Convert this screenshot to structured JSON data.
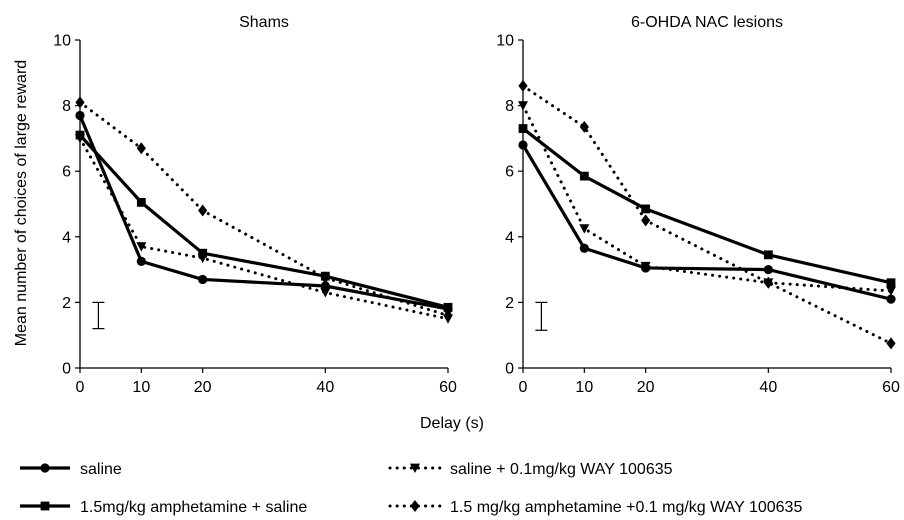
{
  "figure": {
    "ylabel": "Mean number of choices of large reward",
    "xlabel": "Delay (s)"
  },
  "legend": [
    {
      "label": "saline",
      "style": "solid",
      "marker": "circle"
    },
    {
      "label": "saline + 0.1mg/kg WAY 100635",
      "style": "dotted",
      "marker": "triangle-down"
    },
    {
      "label": "1.5mg/kg amphetamine + saline",
      "style": "solid",
      "marker": "square"
    },
    {
      "label": "1.5 mg/kg amphetamine +0.1 mg/kg WAY 100635",
      "style": "dotted",
      "marker": "diamond"
    }
  ],
  "chart_data": [
    {
      "type": "line",
      "title": "Shams",
      "x": [
        0,
        10,
        20,
        40,
        60
      ],
      "xticks": [
        "0",
        "10",
        "20",
        "40",
        "60"
      ],
      "yticks": [
        "0",
        "2",
        "4",
        "6",
        "8",
        "10"
      ],
      "ylim": [
        0,
        10
      ],
      "xlabel": "Delay (s)",
      "ylabel": "Mean number of choices of large reward",
      "error_bar": {
        "x": 3,
        "y_low": 1.2,
        "y_high": 2.0
      },
      "series": [
        {
          "name": "saline",
          "values": [
            7.7,
            3.25,
            2.7,
            2.5,
            1.8
          ]
        },
        {
          "name": "saline + 0.1mg/kg WAY 100635",
          "values": [
            7.0,
            3.7,
            3.35,
            2.3,
            1.5
          ]
        },
        {
          "name": "1.5mg/kg amphetamine + saline",
          "values": [
            7.1,
            5.05,
            3.5,
            2.8,
            1.85
          ]
        },
        {
          "name": "1.5 mg/kg amphetamine +0.1 mg/kg WAY 100635",
          "values": [
            8.1,
            6.7,
            4.8,
            2.75,
            1.6
          ]
        }
      ]
    },
    {
      "type": "line",
      "title": "6-OHDA NAC lesions",
      "x": [
        0,
        10,
        20,
        40,
        60
      ],
      "xticks": [
        "0",
        "10",
        "20",
        "40",
        "60"
      ],
      "yticks": [
        "0",
        "2",
        "4",
        "6",
        "8",
        "10"
      ],
      "ylim": [
        0,
        10
      ],
      "error_bar": {
        "x": 3,
        "y_low": 1.15,
        "y_high": 2.0
      },
      "series": [
        {
          "name": "saline",
          "values": [
            6.8,
            3.65,
            3.05,
            3.0,
            2.1
          ]
        },
        {
          "name": "saline + 0.1mg/kg WAY 100635",
          "values": [
            8.0,
            4.25,
            3.1,
            2.6,
            2.35
          ]
        },
        {
          "name": "1.5mg/kg amphetamine + saline",
          "values": [
            7.3,
            5.85,
            4.85,
            3.45,
            2.6
          ]
        },
        {
          "name": "1.5 mg/kg amphetamine +0.1 mg/kg WAY 100635",
          "values": [
            8.6,
            7.35,
            4.5,
            2.6,
            0.75
          ]
        }
      ]
    }
  ]
}
